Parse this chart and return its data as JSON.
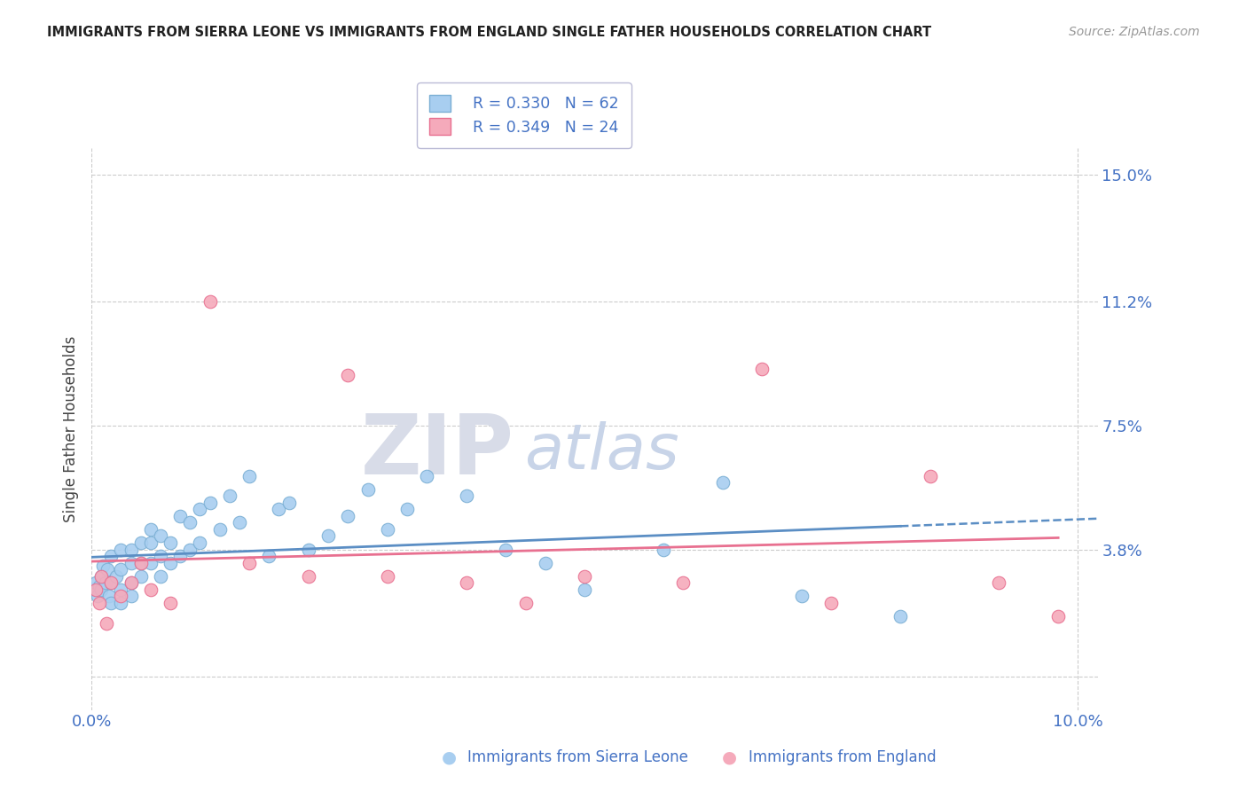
{
  "title": "IMMIGRANTS FROM SIERRA LEONE VS IMMIGRANTS FROM ENGLAND SINGLE FATHER HOUSEHOLDS CORRELATION CHART",
  "source": "Source: ZipAtlas.com",
  "ylabel": "Single Father Households",
  "yticks": [
    0.0,
    0.038,
    0.075,
    0.112,
    0.15
  ],
  "ytick_labels": [
    "",
    "3.8%",
    "7.5%",
    "11.2%",
    "15.0%"
  ],
  "xlim": [
    0.0,
    0.102
  ],
  "ylim": [
    -0.01,
    0.158
  ],
  "legend_blue_R": "R = 0.330",
  "legend_blue_N": "N = 62",
  "legend_pink_R": "R = 0.349",
  "legend_pink_N": "N = 24",
  "bottom_label_blue": "Immigrants from Sierra Leone",
  "bottom_label_pink": "Immigrants from England",
  "blue_dot_color": "#A8CEF0",
  "blue_edge_color": "#7BAFD4",
  "blue_line_color": "#5B8EC4",
  "pink_dot_color": "#F5AABB",
  "pink_edge_color": "#E87090",
  "pink_line_color": "#E87090",
  "sl_x": [
    0.0002,
    0.0004,
    0.0006,
    0.0008,
    0.001,
    0.001,
    0.0012,
    0.0014,
    0.0016,
    0.0018,
    0.002,
    0.002,
    0.002,
    0.0025,
    0.003,
    0.003,
    0.003,
    0.003,
    0.004,
    0.004,
    0.004,
    0.004,
    0.005,
    0.005,
    0.005,
    0.006,
    0.006,
    0.006,
    0.007,
    0.007,
    0.007,
    0.008,
    0.008,
    0.009,
    0.009,
    0.01,
    0.01,
    0.011,
    0.011,
    0.012,
    0.013,
    0.014,
    0.015,
    0.016,
    0.018,
    0.019,
    0.02,
    0.022,
    0.024,
    0.026,
    0.028,
    0.03,
    0.032,
    0.034,
    0.038,
    0.042,
    0.046,
    0.05,
    0.058,
    0.064,
    0.072,
    0.082
  ],
  "sl_y": [
    0.026,
    0.028,
    0.024,
    0.027,
    0.03,
    0.026,
    0.033,
    0.028,
    0.032,
    0.024,
    0.036,
    0.028,
    0.022,
    0.03,
    0.038,
    0.032,
    0.026,
    0.022,
    0.038,
    0.034,
    0.028,
    0.024,
    0.04,
    0.034,
    0.03,
    0.044,
    0.04,
    0.034,
    0.042,
    0.036,
    0.03,
    0.04,
    0.034,
    0.048,
    0.036,
    0.046,
    0.038,
    0.05,
    0.04,
    0.052,
    0.044,
    0.054,
    0.046,
    0.06,
    0.036,
    0.05,
    0.052,
    0.038,
    0.042,
    0.048,
    0.056,
    0.044,
    0.05,
    0.06,
    0.054,
    0.038,
    0.034,
    0.026,
    0.038,
    0.058,
    0.024,
    0.018
  ],
  "en_x": [
    0.0004,
    0.0008,
    0.001,
    0.0015,
    0.002,
    0.003,
    0.004,
    0.005,
    0.006,
    0.008,
    0.012,
    0.016,
    0.022,
    0.026,
    0.03,
    0.038,
    0.044,
    0.05,
    0.06,
    0.068,
    0.075,
    0.085,
    0.092,
    0.098
  ],
  "en_y": [
    0.026,
    0.022,
    0.03,
    0.016,
    0.028,
    0.024,
    0.028,
    0.034,
    0.026,
    0.022,
    0.112,
    0.034,
    0.03,
    0.09,
    0.03,
    0.028,
    0.022,
    0.03,
    0.028,
    0.092,
    0.022,
    0.06,
    0.028,
    0.018
  ]
}
